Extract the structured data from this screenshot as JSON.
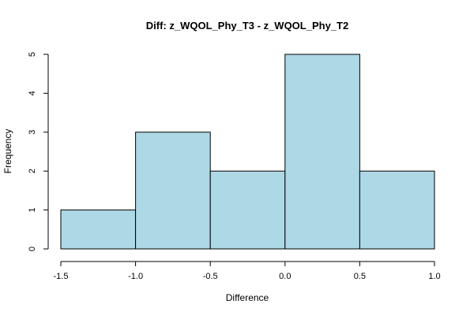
{
  "chart_data": {
    "type": "bar",
    "subtype": "histogram",
    "title": "Diff: z_WQOL_Phy_T3 - z_WQOL_Phy_T2",
    "xlabel": "Difference",
    "ylabel": "Frequency",
    "bins": [
      {
        "start": -1.5,
        "end": -1.0,
        "count": 1
      },
      {
        "start": -1.0,
        "end": -0.5,
        "count": 3
      },
      {
        "start": -0.5,
        "end": 0.0,
        "count": 2
      },
      {
        "start": 0.0,
        "end": 0.5,
        "count": 5
      },
      {
        "start": 0.5,
        "end": 1.0,
        "count": 2
      }
    ],
    "xlim": [
      -1.5,
      1.0
    ],
    "ylim": [
      0,
      5
    ],
    "x_ticks": [
      -1.5,
      -1.0,
      -0.5,
      0.0,
      0.5,
      1.0
    ],
    "x_tick_labels": [
      "-1.5",
      "-1.0",
      "-0.5",
      "0.0",
      "0.5",
      "1.0"
    ],
    "y_ticks": [
      0,
      1,
      2,
      3,
      4,
      5
    ],
    "y_tick_labels": [
      "0",
      "1",
      "2",
      "3",
      "4",
      "5"
    ],
    "grid": false,
    "bar_color": "#ADD8E6",
    "bar_edge_color": "#000000"
  }
}
